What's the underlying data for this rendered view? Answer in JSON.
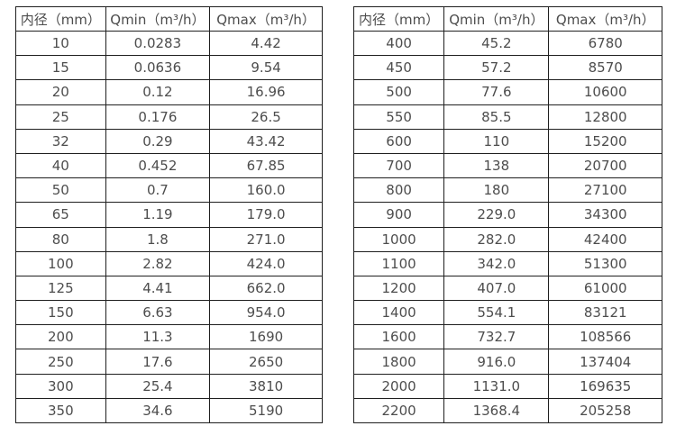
{
  "colors": {
    "background": "#ffffff",
    "border": "#1f1f1f",
    "text": "#4d4d4d"
  },
  "tables": [
    {
      "name": "flow-spec-small-diameter",
      "headers": [
        "内径（mm）",
        "Qmin（m³/h）",
        "Qmax（m³/h）"
      ],
      "rows": [
        [
          "10",
          "0.0283",
          "4.42"
        ],
        [
          "15",
          "0.0636",
          "9.54"
        ],
        [
          "20",
          "0.12",
          "16.96"
        ],
        [
          "25",
          "0.176",
          "26.5"
        ],
        [
          "32",
          "0.29",
          "43.42"
        ],
        [
          "40",
          "0.452",
          "67.85"
        ],
        [
          "50",
          "0.7",
          "160.0"
        ],
        [
          "65",
          "1.19",
          "179.0"
        ],
        [
          "80",
          "1.8",
          "271.0"
        ],
        [
          "100",
          "2.82",
          "424.0"
        ],
        [
          "125",
          "4.41",
          "662.0"
        ],
        [
          "150",
          "6.63",
          "954.0"
        ],
        [
          "200",
          "11.3",
          "1690"
        ],
        [
          "250",
          "17.6",
          "2650"
        ],
        [
          "300",
          "25.4",
          "3810"
        ],
        [
          "350",
          "34.6",
          "5190"
        ]
      ]
    },
    {
      "name": "flow-spec-large-diameter",
      "headers": [
        "内径（mm）",
        "Qmin（m³/h）",
        "Qmax（m³/h）"
      ],
      "rows": [
        [
          "400",
          "45.2",
          "6780"
        ],
        [
          "450",
          "57.2",
          "8570"
        ],
        [
          "500",
          "77.6",
          "10600"
        ],
        [
          "550",
          "85.5",
          "12800"
        ],
        [
          "600",
          "110",
          "15200"
        ],
        [
          "700",
          "138",
          "20700"
        ],
        [
          "800",
          "180",
          "27100"
        ],
        [
          "900",
          "229.0",
          "34300"
        ],
        [
          "1000",
          "282.0",
          "42400"
        ],
        [
          "1100",
          "342.0",
          "51300"
        ],
        [
          "1200",
          "407.0",
          "61000"
        ],
        [
          "1400",
          "554.1",
          "83121"
        ],
        [
          "1600",
          "732.7",
          "108566"
        ],
        [
          "1800",
          "916.0",
          "137404"
        ],
        [
          "2000",
          "1131.0",
          "169635"
        ],
        [
          "2200",
          "1368.4",
          "205258"
        ]
      ]
    }
  ]
}
